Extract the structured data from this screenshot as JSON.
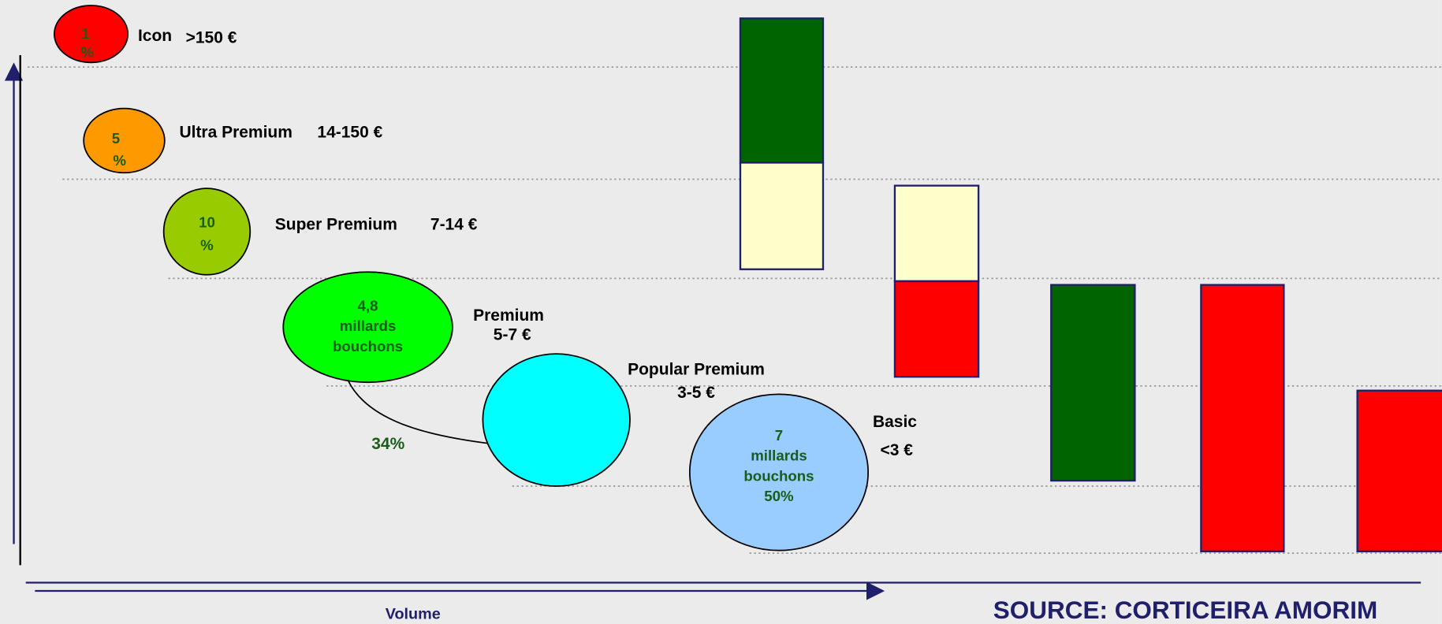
{
  "segments": [
    {
      "circle": [
        "1",
        "%"
      ],
      "name": "Icon",
      "price": ">150 €"
    },
    {
      "circle": [
        "5",
        "%"
      ],
      "name": "Ultra Premium",
      "price": "14-150 €"
    },
    {
      "circle": [
        "10",
        "%"
      ],
      "name": "Super Premium",
      "price": "7-14 €"
    },
    {
      "circle": [
        "4,8",
        "millards",
        "bouchons"
      ],
      "name": "Premium",
      "price": "5-7 €"
    },
    {
      "circle": [],
      "name": "Popular Premium",
      "price": "3-5 €"
    },
    {
      "circle": [
        "7",
        "millards",
        "bouchons",
        "50%"
      ],
      "name": "Basic",
      "price": "<3 €"
    }
  ],
  "annotation": "34%",
  "x_axis_label": "Volume",
  "source": "SOURCE: CORTICEIRA AMORIM"
}
